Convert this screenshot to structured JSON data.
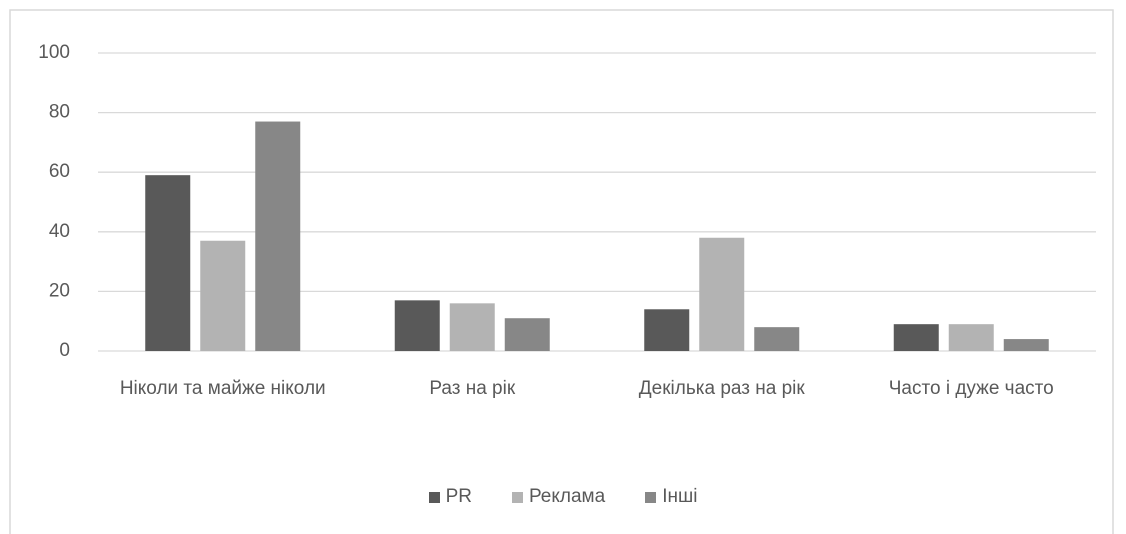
{
  "chart_data": {
    "type": "bar",
    "categories": [
      "Ніколи та майже ніколи",
      "Раз на рік",
      "Декілька раз на рік",
      "Часто і дуже часто"
    ],
    "series": [
      {
        "name": "PR",
        "color": "#595959",
        "values": [
          59,
          17,
          14,
          9
        ]
      },
      {
        "name": "Реклама",
        "color": "#b3b3b3",
        "values": [
          37,
          16,
          38,
          9
        ]
      },
      {
        "name": "Інші",
        "color": "#878787",
        "values": [
          77,
          11,
          8,
          4
        ]
      }
    ],
    "ylim": [
      0,
      100
    ],
    "yticks": [
      0,
      20,
      40,
      60,
      80,
      100
    ],
    "grid": true,
    "legend": "bottom"
  }
}
